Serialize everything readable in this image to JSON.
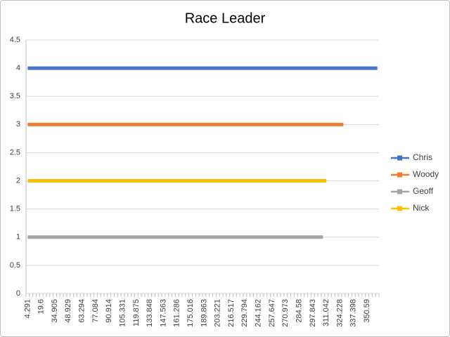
{
  "chart_data": {
    "type": "line",
    "title": "Race Leader",
    "categories": [
      "4.291",
      null,
      null,
      null,
      "19.6",
      null,
      null,
      null,
      "34.905",
      null,
      null,
      null,
      "48.929",
      null,
      null,
      null,
      "63.294",
      null,
      null,
      null,
      "77.084",
      null,
      null,
      null,
      "90.914",
      null,
      null,
      null,
      "105.331",
      null,
      null,
      null,
      "119.875",
      null,
      null,
      null,
      "133.848",
      null,
      null,
      null,
      "147.563",
      null,
      null,
      null,
      "161.286",
      null,
      null,
      null,
      "175.016",
      null,
      null,
      null,
      "189.863",
      null,
      null,
      null,
      "203.221",
      null,
      null,
      null,
      "216.517",
      null,
      null,
      null,
      "229.794",
      null,
      null,
      null,
      "244.162",
      null,
      null,
      null,
      "257.647",
      null,
      null,
      null,
      "270.973",
      null,
      null,
      null,
      "284.58",
      null,
      null,
      null,
      "297.843",
      null,
      null,
      null,
      "311.042",
      null,
      null,
      null,
      "324.228",
      null,
      null,
      null,
      "337.398",
      null,
      null,
      null,
      "350.59",
      null,
      null,
      null
    ],
    "series": [
      {
        "name": "Chris",
        "color": "#4472c4",
        "values": [
          4,
          4,
          4,
          4,
          4,
          4,
          4,
          4,
          4,
          4,
          4,
          4,
          4,
          4,
          4,
          4,
          4,
          4,
          4,
          4,
          4,
          4,
          4,
          4,
          4,
          4,
          4,
          4,
          4,
          4,
          4,
          4,
          4,
          4,
          4,
          4,
          4,
          4,
          4,
          4,
          4,
          4,
          4,
          4,
          4,
          4,
          4,
          4,
          4,
          4,
          4,
          4,
          4,
          4,
          4,
          4,
          4,
          4,
          4,
          4,
          4,
          4,
          4,
          4,
          4,
          4,
          4,
          4,
          4,
          4,
          4,
          4,
          4,
          4,
          4,
          4,
          4,
          4,
          4,
          4,
          4,
          4,
          4,
          4,
          4,
          4,
          4,
          4,
          4,
          4,
          4,
          4,
          4,
          4,
          4,
          4,
          4,
          4,
          4,
          4,
          4,
          4,
          4,
          4
        ]
      },
      {
        "name": "Woody",
        "color": "#ed7d31",
        "values": [
          3,
          3,
          3,
          3,
          3,
          3,
          3,
          3,
          3,
          3,
          3,
          3,
          3,
          3,
          3,
          3,
          3,
          3,
          3,
          3,
          3,
          3,
          3,
          3,
          3,
          3,
          3,
          3,
          3,
          3,
          3,
          3,
          3,
          3,
          3,
          3,
          3,
          3,
          3,
          3,
          3,
          3,
          3,
          3,
          3,
          3,
          3,
          3,
          3,
          3,
          3,
          3,
          3,
          3,
          3,
          3,
          3,
          3,
          3,
          3,
          3,
          3,
          3,
          3,
          3,
          3,
          3,
          3,
          3,
          3,
          3,
          3,
          3,
          3,
          3,
          3,
          3,
          3,
          3,
          3,
          3,
          3,
          3,
          3,
          3,
          3,
          3,
          3,
          3,
          3,
          3,
          3,
          3,
          3,
          null,
          null,
          null,
          null,
          null,
          null,
          null,
          null,
          null,
          null
        ]
      },
      {
        "name": "Geoff",
        "color": "#a5a5a5",
        "values": [
          1,
          1,
          1,
          1,
          1,
          1,
          1,
          1,
          1,
          1,
          1,
          1,
          1,
          1,
          1,
          1,
          1,
          1,
          1,
          1,
          1,
          1,
          1,
          1,
          1,
          1,
          1,
          1,
          1,
          1,
          1,
          1,
          1,
          1,
          1,
          1,
          1,
          1,
          1,
          1,
          1,
          1,
          1,
          1,
          1,
          1,
          1,
          1,
          1,
          1,
          1,
          1,
          1,
          1,
          1,
          1,
          1,
          1,
          1,
          1,
          1,
          1,
          1,
          1,
          1,
          1,
          1,
          1,
          1,
          1,
          1,
          1,
          1,
          1,
          1,
          1,
          1,
          1,
          1,
          1,
          1,
          1,
          1,
          1,
          1,
          1,
          1,
          1,
          null,
          null,
          null,
          null,
          null,
          null,
          null,
          null,
          null,
          null,
          null,
          null,
          null,
          null,
          null,
          null
        ]
      },
      {
        "name": "Nick",
        "color": "#ffc000",
        "values": [
          2,
          2,
          2,
          2,
          2,
          2,
          2,
          2,
          2,
          2,
          2,
          2,
          2,
          2,
          2,
          2,
          2,
          2,
          2,
          2,
          2,
          2,
          2,
          2,
          2,
          2,
          2,
          2,
          2,
          2,
          2,
          2,
          2,
          2,
          2,
          2,
          2,
          2,
          2,
          2,
          2,
          2,
          2,
          2,
          2,
          2,
          2,
          2,
          2,
          2,
          2,
          2,
          2,
          2,
          2,
          2,
          2,
          2,
          2,
          2,
          2,
          2,
          2,
          2,
          2,
          2,
          2,
          2,
          2,
          2,
          2,
          2,
          2,
          2,
          2,
          2,
          2,
          2,
          2,
          2,
          2,
          2,
          2,
          2,
          2,
          2,
          2,
          2,
          2,
          null,
          null,
          null,
          null,
          null,
          null,
          null,
          null,
          null,
          null,
          null,
          null,
          null,
          null,
          null
        ]
      }
    ],
    "ylim": [
      0,
      4.5
    ],
    "yticks": [
      0,
      0.5,
      1,
      1.5,
      2,
      2.5,
      3,
      3.5,
      4,
      4.5
    ],
    "grid": true,
    "legend": "right"
  }
}
